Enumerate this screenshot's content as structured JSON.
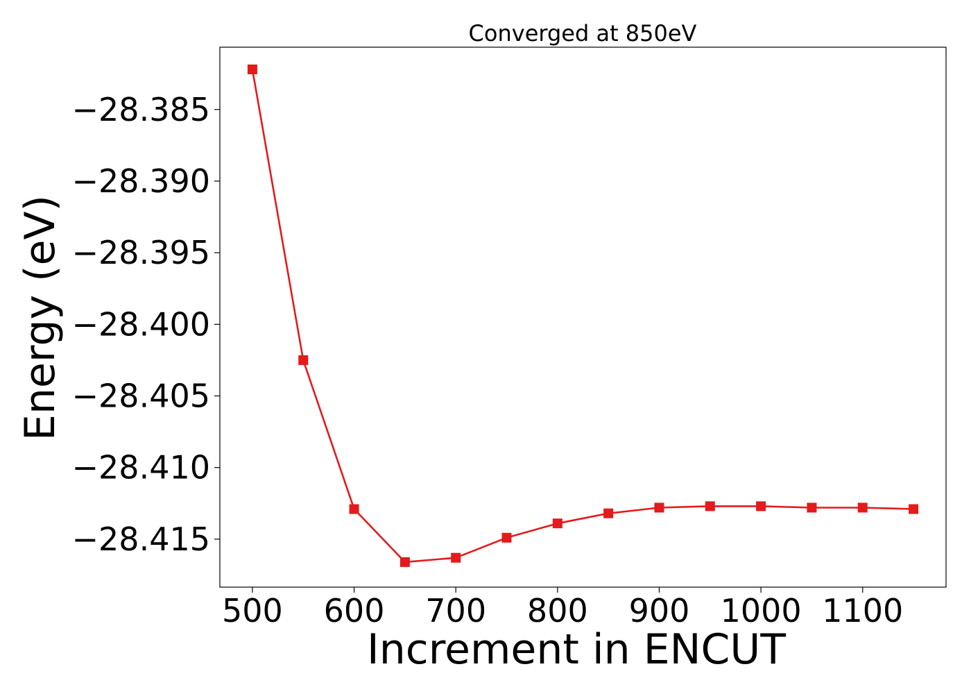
{
  "chart_data": {
    "type": "line",
    "title": "Converged at 850eV",
    "xlabel": "Increment in ENCUT",
    "ylabel": "Energy (eV)",
    "x": [
      500,
      550,
      600,
      650,
      700,
      750,
      800,
      850,
      900,
      950,
      1000,
      1050,
      1100,
      1150
    ],
    "series": [
      {
        "values": [
          -28.3822,
          -28.4025,
          -28.4129,
          -28.4166,
          -28.4163,
          -28.4149,
          -28.4139,
          -28.4132,
          -28.4128,
          -28.4127,
          -28.4127,
          -28.4128,
          -28.4128,
          -28.4129
        ],
        "color": "#e41a1c",
        "marker": "square"
      }
    ],
    "xlim": [
      468,
      1182
    ],
    "ylim": [
      -28.41835,
      -28.38065
    ],
    "xticks": [
      500,
      600,
      700,
      800,
      900,
      1000,
      1100
    ],
    "xtick_labels": [
      "500",
      "600",
      "700",
      "800",
      "900",
      "1000",
      "1100"
    ],
    "yticks": [
      -28.385,
      -28.39,
      -28.395,
      -28.4,
      -28.405,
      -28.41,
      -28.415
    ],
    "ytick_labels": [
      "−28.385",
      "−28.390",
      "−28.395",
      "−28.400",
      "−28.405",
      "−28.410",
      "−28.415"
    ],
    "grid": false,
    "legend": "none"
  }
}
